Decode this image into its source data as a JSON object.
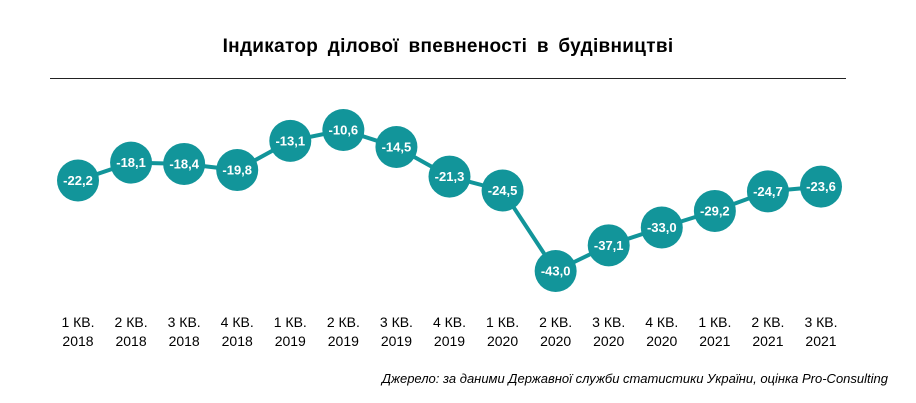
{
  "chart_data": {
    "type": "line",
    "title": "Індикатор ділової впевненості  в будівництві",
    "categories": [
      [
        "1 КВ.",
        "2018"
      ],
      [
        "2 КВ.",
        "2018"
      ],
      [
        "3 КВ.",
        "2018"
      ],
      [
        "4 КВ.",
        "2018"
      ],
      [
        "1 КВ.",
        "2019"
      ],
      [
        "2 КВ.",
        "2019"
      ],
      [
        "3 КВ.",
        "2019"
      ],
      [
        "4 КВ.",
        "2019"
      ],
      [
        "1 КВ.",
        "2020"
      ],
      [
        "2 КВ.",
        "2020"
      ],
      [
        "3 КВ.",
        "2020"
      ],
      [
        "4 КВ.",
        "2020"
      ],
      [
        "1 КВ.",
        "2021"
      ],
      [
        "2 КВ.",
        "2021"
      ],
      [
        "3 КВ.",
        "2021"
      ]
    ],
    "values": [
      -22.2,
      -18.1,
      -18.4,
      -19.8,
      -13.1,
      -10.6,
      -14.5,
      -21.3,
      -24.5,
      -43.0,
      -37.1,
      -33.0,
      -29.2,
      -24.7,
      -23.6
    ],
    "labels": [
      "-22,2",
      "-18,1",
      "-18,4",
      "-19,8",
      "-13,1",
      "-10,6",
      "-14,5",
      "-21,3",
      "-24,5",
      "-43,0",
      "-37,1",
      "-33,0",
      "-29,2",
      "-24,7",
      "-23,6"
    ],
    "ylim": [
      -45,
      -8
    ],
    "grid": false,
    "legend": "none",
    "colors": {
      "marker": "#12959A",
      "line": "#12959A",
      "label": "#ffffff"
    }
  },
  "source": "Джерело: за даними Державної служби статистики України, оцінка Pro-Consulting"
}
